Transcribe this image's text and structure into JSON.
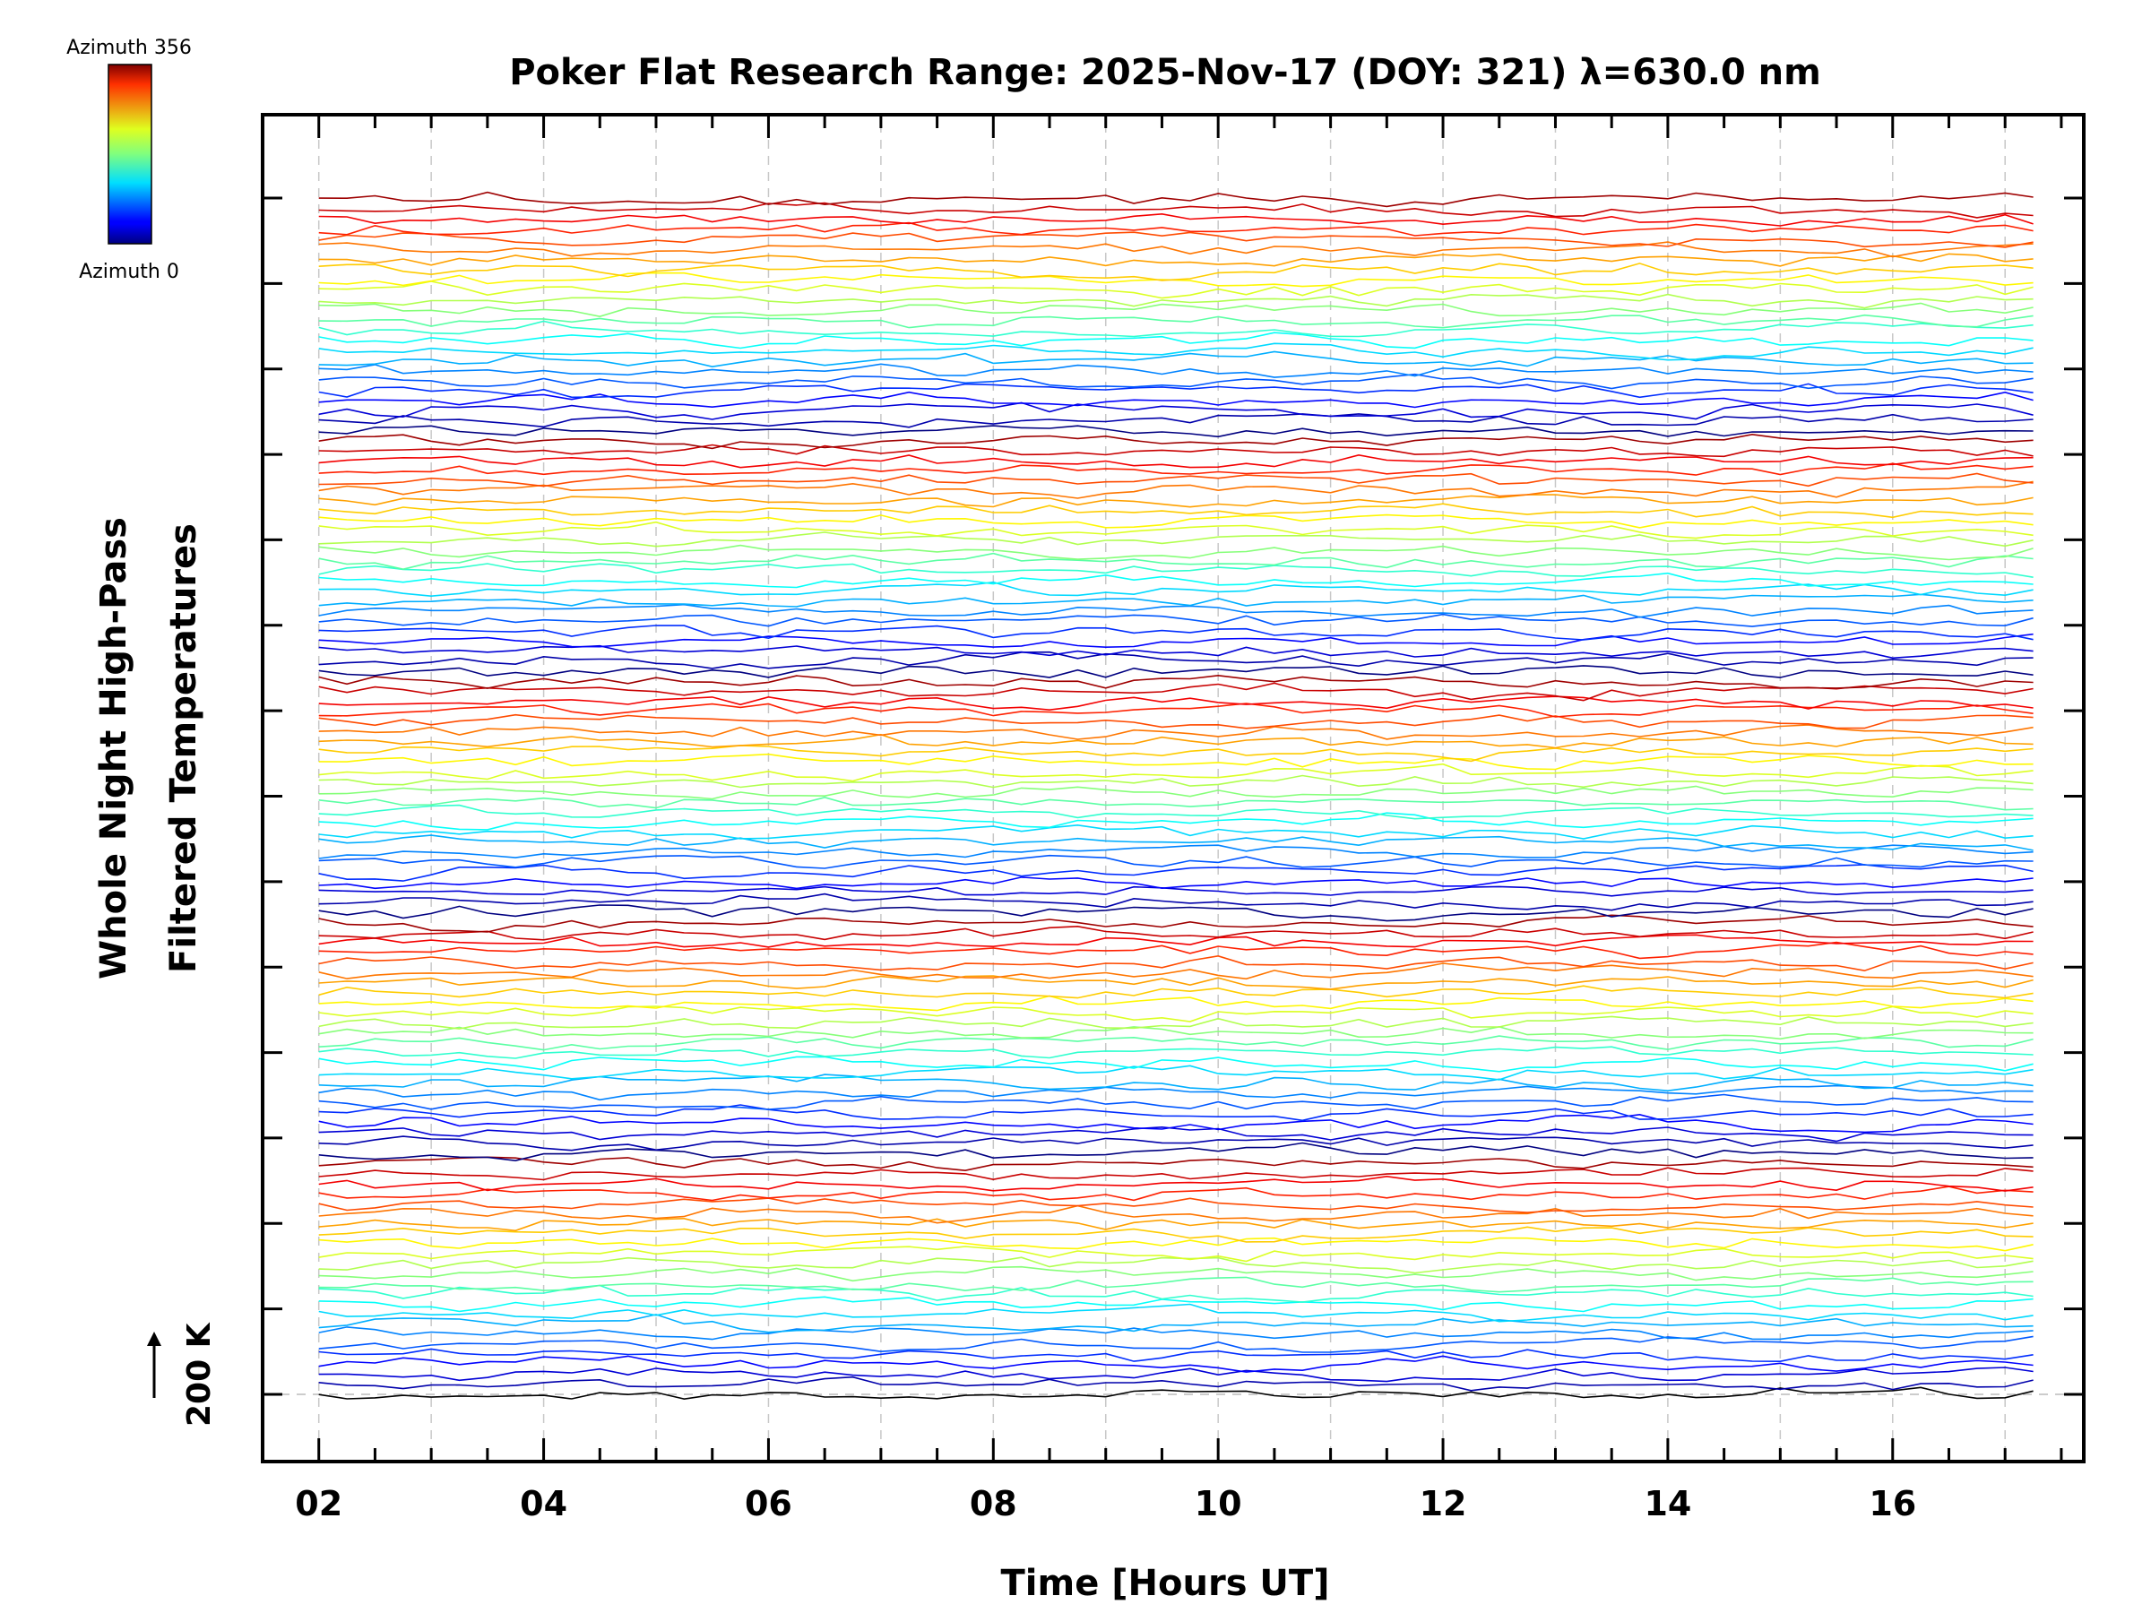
{
  "chart_data": {
    "type": "line",
    "title": "Poker Flat Research Range: 2025-Nov-17 (DOY: 321) λ=630.0 nm",
    "xlabel": "Time [Hours UT]",
    "ylabel_line1": "Whole Night High-Pass",
    "ylabel_line2": "Filtered Temperatures",
    "xlim": [
      1.5,
      17.7
    ],
    "x_start": 2.0,
    "x_end": 17.25,
    "x_step": 0.25,
    "x_ticks": [
      2,
      4,
      6,
      8,
      10,
      12,
      14,
      16
    ],
    "x_tick_labels": [
      "02",
      "04",
      "06",
      "08",
      "10",
      "12",
      "14",
      "16"
    ],
    "x_minor_step": 0.5,
    "x_grid_step": 1,
    "scale_bar_label": "200 K",
    "colorbar": {
      "top_label": "Azimuth 356",
      "bottom_label": "Azimuth 0",
      "colormap": "jet"
    },
    "series_count": 120,
    "series_note": "Stacked, vertically offset temperature traces colored by azimuth (0–356°); values are high-pass filtered perturbations."
  }
}
